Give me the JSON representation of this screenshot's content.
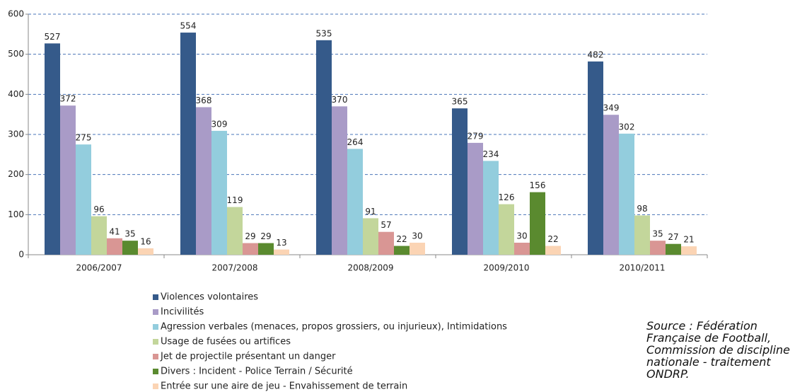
{
  "chart_data": {
    "type": "bar",
    "categories": [
      "2006/2007",
      "2007/2008",
      "2008/2009",
      "2009/2010",
      "2010/2011"
    ],
    "series": [
      {
        "name": "Violences volontaires",
        "color": "#355a8a",
        "values": [
          527,
          554,
          535,
          365,
          482
        ]
      },
      {
        "name": "Incivilités",
        "color": "#a99bc7",
        "values": [
          372,
          368,
          370,
          279,
          349
        ]
      },
      {
        "name": "Agression verbales (menaces, propos grossiers, ou injurieux), Intimidations",
        "color": "#93cddd",
        "values": [
          275,
          309,
          264,
          234,
          302
        ]
      },
      {
        "name": "Usage de fusées ou artifices",
        "color": "#c3d69b",
        "values": [
          96,
          119,
          91,
          126,
          98
        ]
      },
      {
        "name": "Jet de projectile présentant un danger",
        "color": "#d99694",
        "values": [
          41,
          29,
          57,
          30,
          35
        ]
      },
      {
        "name": "Divers :  Incident - Police Terrain / Sécurité",
        "color": "#5a8a2f",
        "values": [
          35,
          29,
          22,
          156,
          27
        ]
      },
      {
        "name": "Entrée sur une aire de jeu - Envahissement de terrain",
        "color": "#fbd4b4",
        "values": [
          16,
          13,
          30,
          22,
          21
        ]
      }
    ],
    "ylim": [
      0,
      600
    ],
    "yticks": [
      0,
      100,
      200,
      300,
      400,
      500,
      600
    ],
    "grid": true,
    "annotation": "Source : Fédération Française de Football, Commission de discipline nationale - traitement ONDRP."
  }
}
